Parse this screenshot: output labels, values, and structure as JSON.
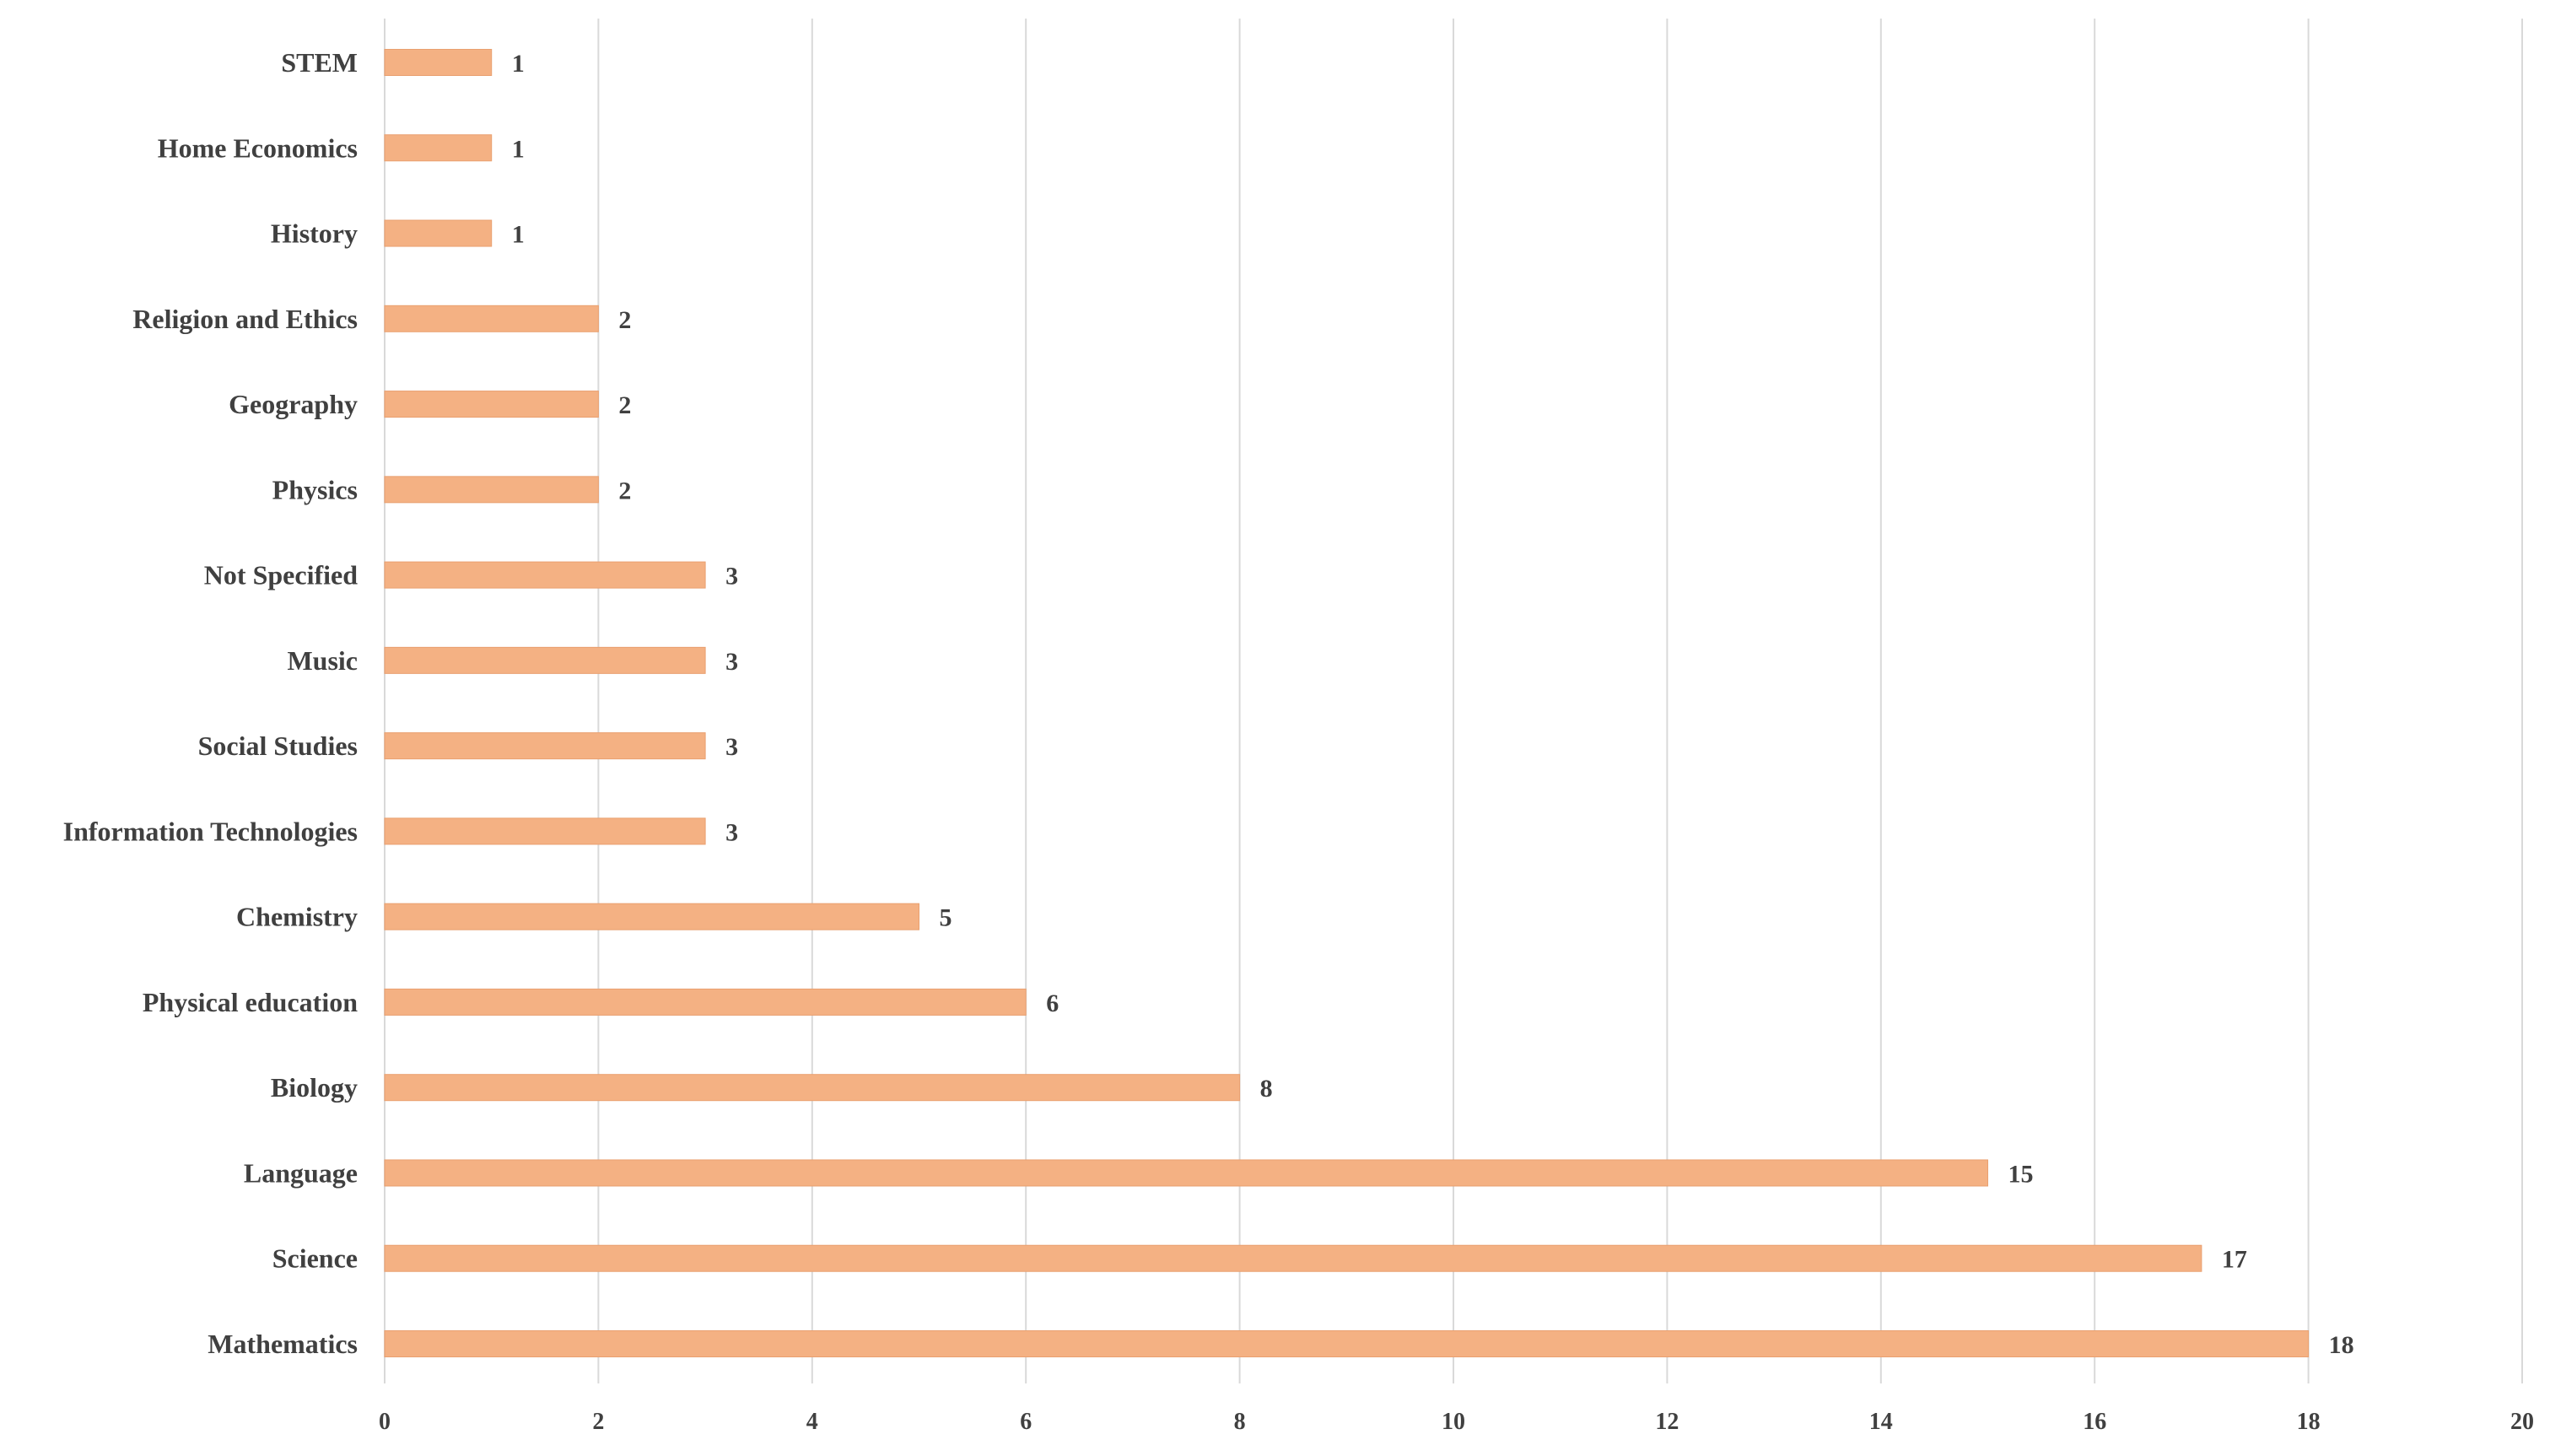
{
  "chart_data": {
    "type": "bar",
    "orientation": "horizontal",
    "title": "",
    "xlabel": "",
    "ylabel": "",
    "categories": [
      "Mathematics",
      "Science",
      "Language",
      "Biology",
      "Physical education",
      "Chemistry",
      "Information Technologies",
      "Social Studies",
      "Music",
      "Not Specified",
      "Physics",
      "Geography",
      "Religion and Ethics",
      "History",
      "Home Economics",
      "STEM"
    ],
    "values": [
      18,
      17,
      15,
      8,
      6,
      5,
      3,
      3,
      3,
      3,
      2,
      2,
      2,
      1,
      1,
      1
    ],
    "xlim": [
      0,
      20
    ],
    "x_ticks": [
      "0",
      "2",
      "4",
      "6",
      "8",
      "10",
      "12",
      "14",
      "16",
      "18",
      "20"
    ],
    "grid": "vertical",
    "legend": "none",
    "data_labels": true
  },
  "colors": {
    "bar": "#F4B183",
    "bar_edge": "#E9A070",
    "gridline": "#D9D9D9",
    "text": "#404040",
    "axis": "#D9D9D9"
  }
}
